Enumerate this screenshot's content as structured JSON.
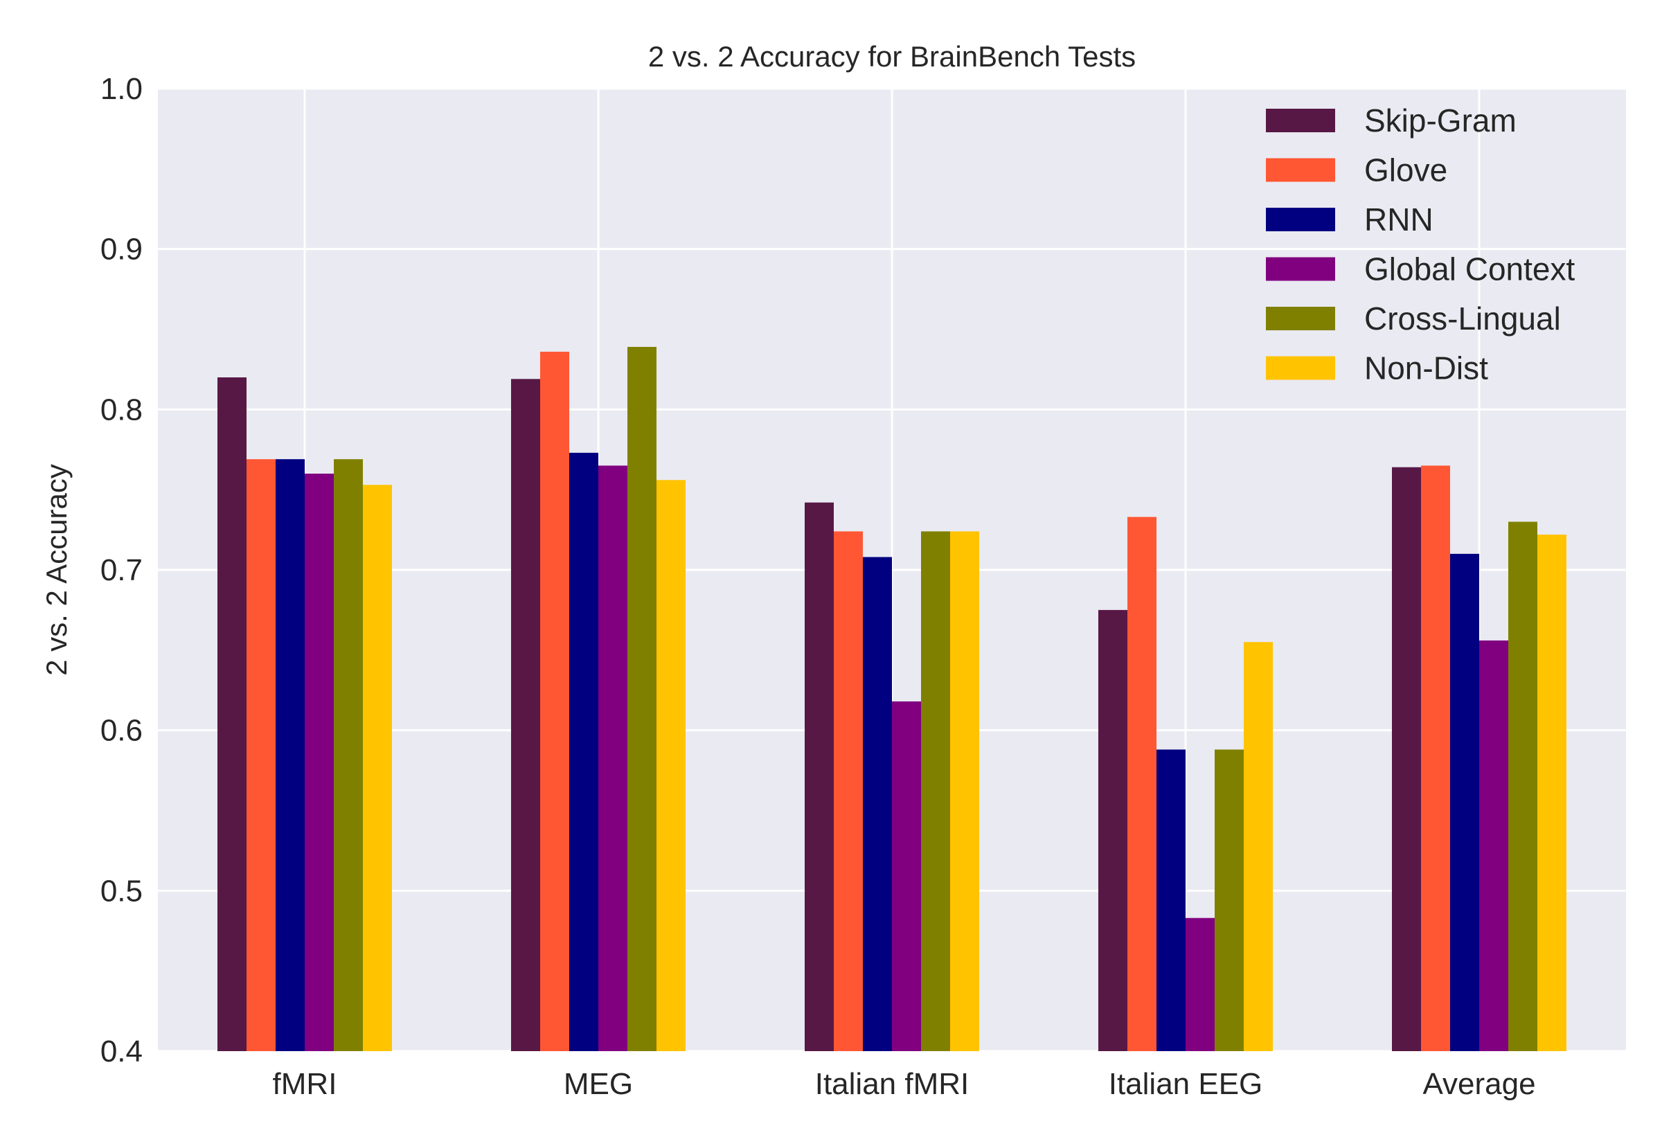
{
  "chart_data": {
    "type": "bar",
    "title": "2 vs. 2 Accuracy for BrainBench Tests",
    "xlabel": "",
    "ylabel": "2 vs. 2 Accuracy",
    "ylim": [
      0.4,
      1.0
    ],
    "yticks": [
      "0.4",
      "0.5",
      "0.6",
      "0.7",
      "0.8",
      "0.9",
      "1.0"
    ],
    "grid": true,
    "legend_position": "top-right",
    "categories": [
      "fMRI",
      "MEG",
      "Italian fMRI",
      "Italian EEG",
      "Average"
    ],
    "series": [
      {
        "name": "Skip-Gram",
        "color": "#581845",
        "values": [
          0.82,
          0.819,
          0.742,
          0.675,
          0.764
        ]
      },
      {
        "name": "Glove",
        "color": "#FF5733",
        "values": [
          0.769,
          0.836,
          0.724,
          0.733,
          0.765
        ]
      },
      {
        "name": "RNN",
        "color": "#000080",
        "values": [
          0.769,
          0.773,
          0.708,
          0.588,
          0.71
        ]
      },
      {
        "name": "Global Context",
        "color": "#800080",
        "values": [
          0.76,
          0.765,
          0.618,
          0.483,
          0.656
        ]
      },
      {
        "name": "Cross-Lingual",
        "color": "#808000",
        "values": [
          0.769,
          0.839,
          0.724,
          0.588,
          0.73
        ]
      },
      {
        "name": "Non-Dist",
        "color": "#FFC300",
        "values": [
          0.753,
          0.756,
          0.724,
          0.655,
          0.722
        ]
      }
    ]
  },
  "style": {
    "plot_background": "#EAEAF2",
    "grid_color": "#FFFFFF",
    "text_color": "#262626"
  }
}
